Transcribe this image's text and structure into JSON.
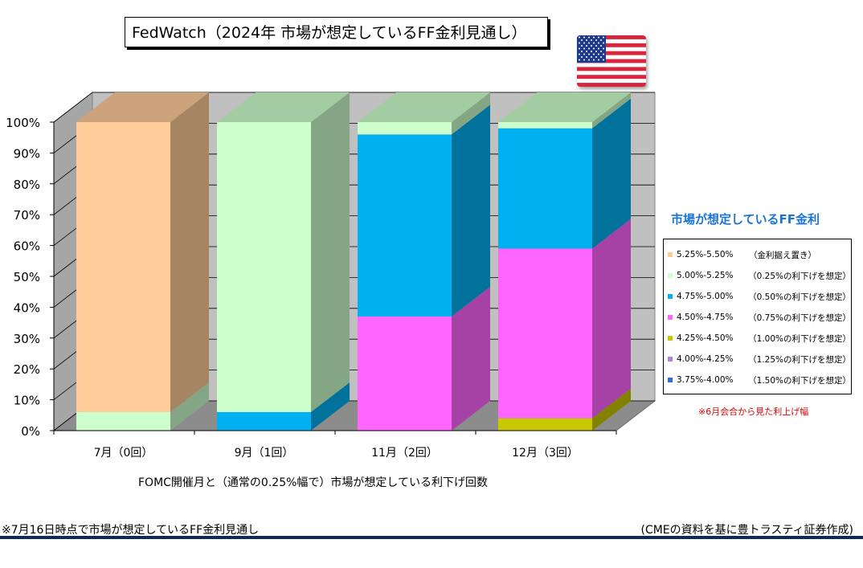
{
  "title": "FedWatch（2024年 市場が想定しているFF金利見通し）",
  "legend_title": "市場が想定しているFF金利",
  "legend_note": "※6月会合から見た利上げ幅",
  "footnote_left": "※7月16日時点で市場が想定しているFF金利見通し",
  "footnote_right": "(CMEの資料を基に豊トラスティ証券作成)",
  "flag_icon": "us-flag-icon",
  "chart_data": {
    "type": "bar",
    "stacked": true,
    "three_d": true,
    "title": "FedWatch（2024年 市場が想定しているFF金利見通し）",
    "xlabel": "FOMC開催月と（通常の0.25%幅で）市場が想定している利下げ回数",
    "ylabel": "",
    "ylim": [
      0,
      100
    ],
    "yticks": [
      "0%",
      "10%",
      "20%",
      "30%",
      "40%",
      "50%",
      "60%",
      "70%",
      "80%",
      "90%",
      "100%"
    ],
    "categories": [
      "7月（0回）",
      "9月（1回）",
      "11月（2回）",
      "12月（3回）"
    ],
    "legend_position": "right",
    "series": [
      {
        "name": "3.75%-4.00%",
        "note": "（1.50%の利下げを想定）",
        "color": "#2f6fd6",
        "values": [
          0,
          0,
          0,
          0
        ]
      },
      {
        "name": "4.00%-4.25%",
        "note": "（1.25%の利下げを想定）",
        "color": "#b07fe0",
        "values": [
          0,
          0,
          0,
          0
        ]
      },
      {
        "name": "4.25%-4.50%",
        "note": "（1.00%の利下げを想定）",
        "color": "#c8c800",
        "values": [
          0,
          0,
          0,
          4
        ]
      },
      {
        "name": "4.50%-4.75%",
        "note": "（0.75%の利下げを想定）",
        "color": "#ff66ff",
        "values": [
          0,
          0,
          37,
          55
        ]
      },
      {
        "name": "4.75%-5.00%",
        "note": "（0.50%の利下げを想定）",
        "color": "#00b0f0",
        "values": [
          0,
          6,
          59,
          39
        ]
      },
      {
        "name": "5.00%-5.25%",
        "note": "（0.25%の利下げを想定）",
        "color": "#ccffcc",
        "values": [
          6,
          94,
          4,
          2
        ]
      },
      {
        "name": "5.25%-5.50%",
        "note": "（金利据え置き）",
        "color": "#ffcc99",
        "values": [
          94,
          0,
          0,
          0
        ]
      }
    ]
  }
}
